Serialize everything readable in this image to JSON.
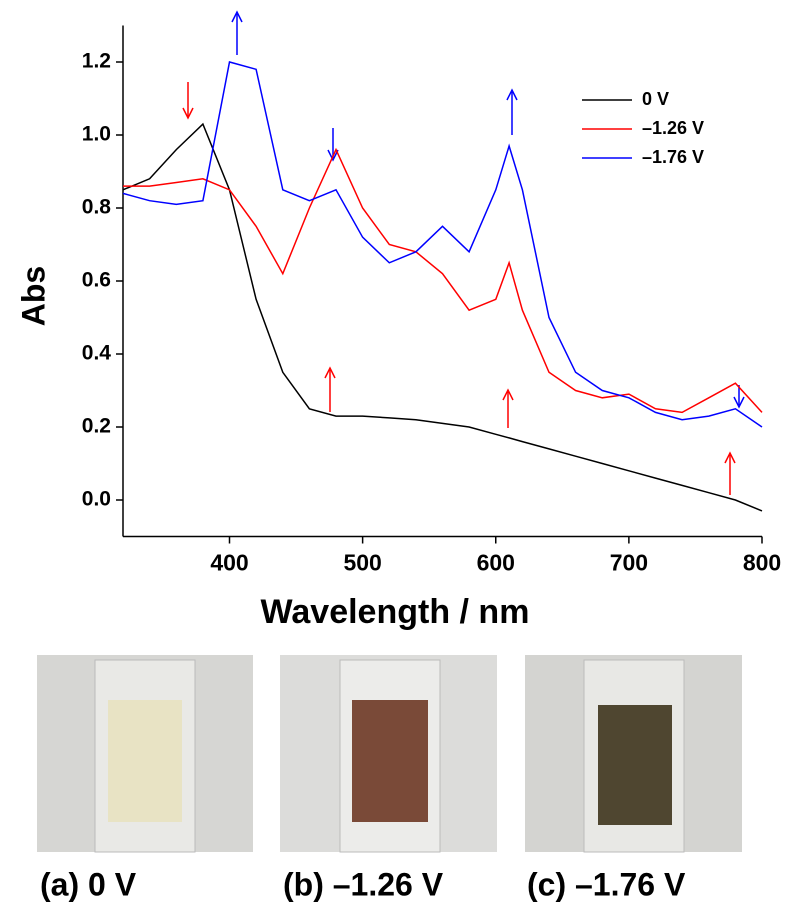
{
  "chart_data": {
    "type": "line",
    "x_label": "Wavelength / nm",
    "y_label": "Abs",
    "x": [
      320,
      340,
      360,
      380,
      400,
      420,
      440,
      460,
      480,
      500,
      520,
      540,
      560,
      580,
      600,
      610,
      620,
      640,
      660,
      680,
      700,
      720,
      740,
      760,
      780,
      800
    ],
    "series": [
      {
        "name": "0 V",
        "color": "#000000",
        "values": [
          0.85,
          0.88,
          0.96,
          1.03,
          0.85,
          0.55,
          0.35,
          0.25,
          0.23,
          0.23,
          0.225,
          0.22,
          0.21,
          0.2,
          0.18,
          0.17,
          0.16,
          0.14,
          0.12,
          0.1,
          0.08,
          0.06,
          0.04,
          0.02,
          0.0,
          -0.03
        ]
      },
      {
        "name": "–1.26 V",
        "color": "#ff0000",
        "values": [
          0.86,
          0.86,
          0.87,
          0.88,
          0.85,
          0.75,
          0.62,
          0.8,
          0.96,
          0.8,
          0.7,
          0.68,
          0.62,
          0.52,
          0.55,
          0.65,
          0.52,
          0.35,
          0.3,
          0.28,
          0.29,
          0.25,
          0.24,
          0.28,
          0.32,
          0.24
        ]
      },
      {
        "name": "–1.76 V",
        "color": "#0000ff",
        "values": [
          0.84,
          0.82,
          0.81,
          0.82,
          1.2,
          1.18,
          0.85,
          0.82,
          0.85,
          0.72,
          0.65,
          0.68,
          0.75,
          0.68,
          0.85,
          0.97,
          0.85,
          0.5,
          0.35,
          0.3,
          0.28,
          0.24,
          0.22,
          0.23,
          0.25,
          0.2
        ]
      }
    ],
    "xlim": [
      320,
      800
    ],
    "xticks": [
      400,
      500,
      600,
      700,
      800
    ],
    "ylim": [
      -0.1,
      1.3
    ],
    "yticks": [
      {
        "value": 0,
        "label": "0.0"
      },
      0.2,
      0.4,
      0.6,
      0.8,
      {
        "value": 1,
        "label": "1.0"
      },
      1.2
    ],
    "legend": "upper right"
  },
  "photos": [
    {
      "caption": "(a)  0 V"
    },
    {
      "caption": "(b) –1.26 V"
    },
    {
      "caption": "(c) –1.76 V"
    }
  ]
}
